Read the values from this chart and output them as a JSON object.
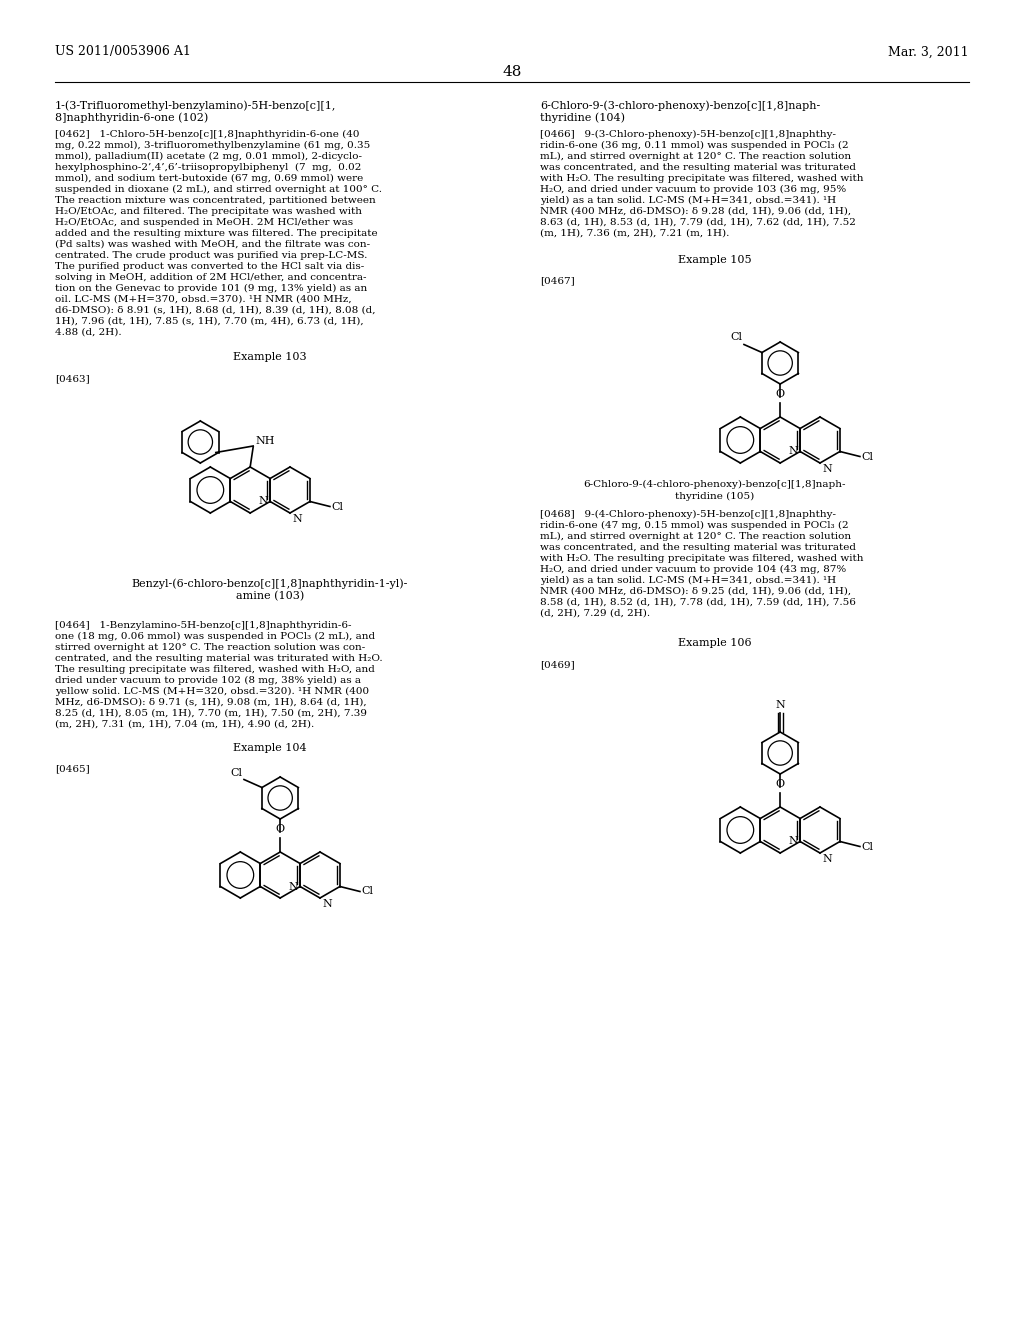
{
  "page_header_left": "US 2011/0053906 A1",
  "page_header_right": "Mar. 3, 2011",
  "page_number": "48",
  "background_color": "#ffffff",
  "text_color": "#000000",
  "lines_L1": [
    [
      "[0462]   1-Chloro-5H-benzo[c][1,8]naphthyridin-6-one (40",
      130
    ],
    [
      "mg, 0.22 mmol), 3-trifluoromethylbenzylamine (61 mg, 0.35",
      141
    ],
    [
      "mmol), palladium(II) acetate (2 mg, 0.01 mmol), 2-dicyclo-",
      152
    ],
    [
      "hexylphosphino-2’,4’,6’-triisopropylbiphenyl  (7  mg,  0.02",
      163
    ],
    [
      "mmol), and sodium tert-butoxide (67 mg, 0.69 mmol) were",
      174
    ],
    [
      "suspended in dioxane (2 mL), and stirred overnight at 100° C.",
      185
    ],
    [
      "The reaction mixture was concentrated, partitioned between",
      196
    ],
    [
      "H₂O/EtOAc, and filtered. The precipitate was washed with",
      207
    ],
    [
      "H₂O/EtOAc, and suspended in MeOH. 2M HCl/ether was",
      218
    ],
    [
      "added and the resulting mixture was filtered. The precipitate",
      229
    ],
    [
      "(Pd salts) was washed with MeOH, and the filtrate was con-",
      240
    ],
    [
      "centrated. The crude product was purified via prep-LC-MS.",
      251
    ],
    [
      "The purified product was converted to the HCl salt via dis-",
      262
    ],
    [
      "solving in MeOH, addition of 2M HCl/ether, and concentra-",
      273
    ],
    [
      "tion on the Genevac to provide 101 (9 mg, 13% yield) as an",
      284
    ],
    [
      "oil. LC-MS (M+H=370, obsd.=370). ¹H NMR (400 MHz,",
      295
    ],
    [
      "d6-DMSO): δ 8.91 (s, 1H), 8.68 (d, 1H), 8.39 (d, 1H), 8.08 (d,",
      306
    ],
    [
      "1H), 7.96 (dt, 1H), 7.85 (s, 1H), 7.70 (m, 4H), 6.73 (d, 1H),",
      317
    ],
    [
      "4.88 (d, 2H).",
      328
    ]
  ],
  "lines_R1": [
    [
      "[0466]   9-(3-Chloro-phenoxy)-5H-benzo[c][1,8]naphthy-",
      130
    ],
    [
      "ridin-6-one (36 mg, 0.11 mmol) was suspended in POCl₃ (2",
      141
    ],
    [
      "mL), and stirred overnight at 120° C. The reaction solution",
      152
    ],
    [
      "was concentrated, and the resulting material was triturated",
      163
    ],
    [
      "with H₂O. The resulting precipitate was filtered, washed with",
      174
    ],
    [
      "H₂O, and dried under vacuum to provide 103 (36 mg, 95%",
      185
    ],
    [
      "yield) as a tan solid. LC-MS (M+H=341, obsd.=341). ¹H",
      196
    ],
    [
      "NMR (400 MHz, d6-DMSO): δ 9.28 (dd, 1H), 9.06 (dd, 1H),",
      207
    ],
    [
      "8.63 (d, 1H), 8.53 (d, 1H), 7.79 (dd, 1H), 7.62 (dd, 1H), 7.52",
      218
    ],
    [
      "(m, 1H), 7.36 (m, 2H), 7.21 (m, 1H).",
      229
    ]
  ],
  "lines_L2": [
    [
      "[0464]   1-Benzylamino-5H-benzo[c][1,8]naphthyridin-6-",
      621
    ],
    [
      "one (18 mg, 0.06 mmol) was suspended in POCl₃ (2 mL), and",
      632
    ],
    [
      "stirred overnight at 120° C. The reaction solution was con-",
      643
    ],
    [
      "centrated, and the resulting material was triturated with H₂O.",
      654
    ],
    [
      "The resulting precipitate was filtered, washed with H₂O, and",
      665
    ],
    [
      "dried under vacuum to provide 102 (8 mg, 38% yield) as a",
      676
    ],
    [
      "yellow solid. LC-MS (M+H=320, obsd.=320). ¹H NMR (400",
      687
    ],
    [
      "MHz, d6-DMSO): δ 9.71 (s, 1H), 9.08 (m, 1H), 8.64 (d, 1H),",
      698
    ],
    [
      "8.25 (d, 1H), 8.05 (m, 1H), 7.70 (m, 1H), 7.50 (m, 2H), 7.39",
      709
    ],
    [
      "(m, 2H), 7.31 (m, 1H), 7.04 (m, 1H), 4.90 (d, 2H).",
      720
    ]
  ],
  "lines_R2": [
    [
      "[0468]   9-(4-Chloro-phenoxy)-5H-benzo[c][1,8]naphthy-",
      510
    ],
    [
      "ridin-6-one (47 mg, 0.15 mmol) was suspended in POCl₃ (2",
      521
    ],
    [
      "mL), and stirred overnight at 120° C. The reaction solution",
      532
    ],
    [
      "was concentrated, and the resulting material was triturated",
      543
    ],
    [
      "with H₂O. The resulting precipitate was filtered, washed with",
      554
    ],
    [
      "H₂O, and dried under vacuum to provide 104 (43 mg, 87%",
      565
    ],
    [
      "yield) as a tan solid. LC-MS (M+H=341, obsd.=341). ¹H",
      576
    ],
    [
      "NMR (400 MHz, d6-DMSO): δ 9.25 (dd, 1H), 9.06 (dd, 1H),",
      587
    ],
    [
      "8.58 (d, 1H), 8.52 (d, 1H), 7.78 (dd, 1H), 7.59 (dd, 1H), 7.56",
      598
    ],
    [
      "(d, 2H), 7.29 (d, 2H).",
      609
    ]
  ]
}
